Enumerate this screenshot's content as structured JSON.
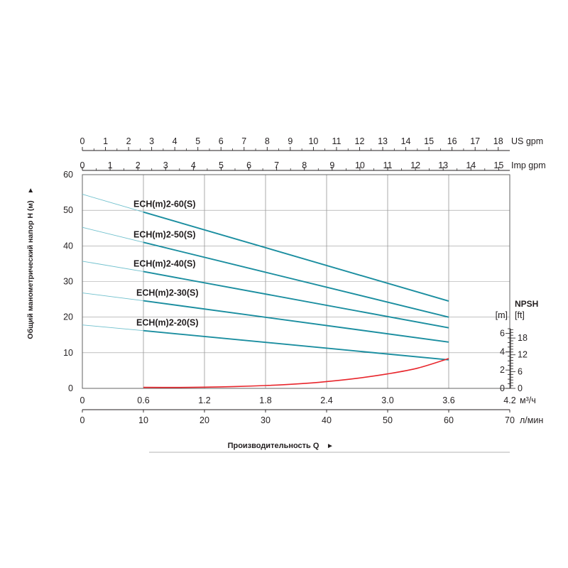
{
  "chart_data": {
    "type": "line",
    "ylabel": "Общий манометрический напор H (м)",
    "ylabel_arrow": "►",
    "xlabel": "Производительность Q",
    "xlabel_arrow": "►",
    "grid": true,
    "x_m3h": {
      "range": [
        0,
        4.2
      ],
      "ticks": [
        0,
        0.6,
        1.2,
        1.8,
        2.4,
        3.0,
        3.6,
        4.2
      ],
      "tick_labels": [
        "0",
        "0.6",
        "1.2",
        "1.8",
        "2.4",
        "3.0",
        "3.6",
        "4.2"
      ],
      "unit": "м³/ч"
    },
    "x_lmin": {
      "range": [
        0,
        70
      ],
      "ticks": [
        0,
        10,
        20,
        30,
        40,
        50,
        60,
        70
      ],
      "tick_labels": [
        "0",
        "10",
        "20",
        "30",
        "40",
        "50",
        "60",
        "70"
      ],
      "unit": "л/мин"
    },
    "x_usgpm": {
      "range": [
        0,
        18.5
      ],
      "ticks": [
        0,
        1,
        2,
        3,
        4,
        5,
        6,
        7,
        8,
        9,
        10,
        11,
        12,
        13,
        14,
        15,
        16,
        17,
        18
      ],
      "tick_labels": [
        "0",
        "1",
        "2",
        "3",
        "4",
        "5",
        "6",
        "7",
        "8",
        "9",
        "10",
        "11",
        "12",
        "13",
        "14",
        "15",
        "16",
        "17",
        "18"
      ],
      "unit": "US gpm"
    },
    "x_impgpm": {
      "range": [
        0,
        15.4
      ],
      "ticks": [
        0,
        1,
        2,
        3,
        4,
        5,
        6,
        7,
        8,
        9,
        10,
        11,
        12,
        13,
        14,
        15
      ],
      "tick_labels": [
        "0",
        "1",
        "2",
        "3",
        "4",
        "5",
        "6",
        "7",
        "8",
        "9",
        "10",
        "11",
        "12",
        "13",
        "14",
        "15"
      ],
      "unit": "Imp gpm"
    },
    "y_head": {
      "range": [
        0,
        60
      ],
      "ticks": [
        0,
        10,
        20,
        30,
        40,
        50,
        60
      ],
      "tick_labels": [
        "0",
        "10",
        "20",
        "30",
        "40",
        "50",
        "60"
      ]
    },
    "npsh": {
      "title": "NPSH",
      "unit_m": "[m]",
      "unit_ft": "[ft]",
      "m_ticks": [
        0,
        2,
        4,
        6
      ],
      "m_tick_labels": [
        "0",
        "2",
        "4",
        "6"
      ],
      "ft_ticks": [
        0,
        6,
        12,
        18
      ],
      "ft_tick_labels": [
        "0",
        "6",
        "12",
        "18"
      ],
      "m_max": 6.5
    },
    "series": [
      {
        "name": "ECH(m)2-60(S)",
        "x": [
          0,
          0.6,
          3.6
        ],
        "y": [
          54.5,
          49.5,
          24.5
        ],
        "color": "#1b8ea0"
      },
      {
        "name": "ECH(m)2-50(S)",
        "x": [
          0,
          0.6,
          3.6
        ],
        "y": [
          45.2,
          41.0,
          20.0
        ],
        "color": "#1b8ea0"
      },
      {
        "name": "ECH(m)2-40(S)",
        "x": [
          0,
          0.6,
          3.6
        ],
        "y": [
          35.7,
          32.8,
          17.0
        ],
        "color": "#1b8ea0"
      },
      {
        "name": "ECH(m)2-30(S)",
        "x": [
          0,
          0.6,
          3.6
        ],
        "y": [
          26.8,
          24.6,
          13.0
        ],
        "color": "#1b8ea0"
      },
      {
        "name": "ECH(m)2-20(S)",
        "x": [
          0,
          0.6,
          3.6
        ],
        "y": [
          17.8,
          16.2,
          8.0
        ],
        "color": "#1b8ea0"
      }
    ],
    "npsh_curve": {
      "x": [
        0.6,
        0.9,
        1.2,
        1.5,
        1.8,
        2.1,
        2.4,
        2.7,
        3.0,
        3.3,
        3.6
      ],
      "y_m": [
        0.11,
        0.1,
        0.13,
        0.2,
        0.31,
        0.48,
        0.74,
        1.1,
        1.58,
        2.22,
        3.25
      ],
      "color": "#e8262c"
    }
  }
}
